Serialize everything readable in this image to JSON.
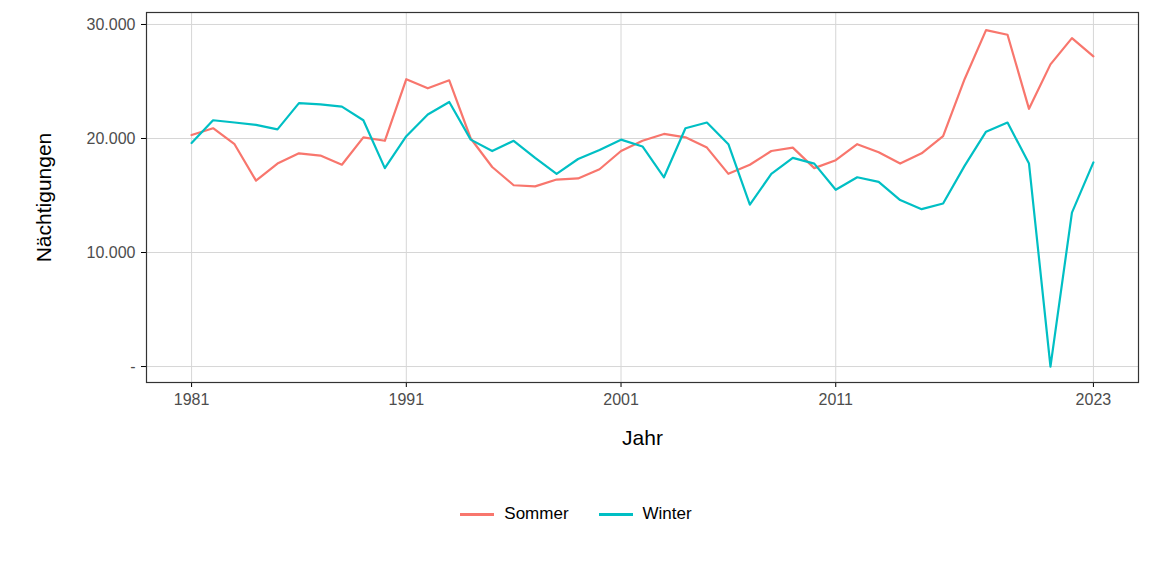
{
  "chart_data": {
    "type": "line",
    "x_label": "Jahr",
    "y_label": "Nächtigungen",
    "x": [
      1981,
      1982,
      1983,
      1984,
      1985,
      1986,
      1987,
      1988,
      1989,
      1990,
      1991,
      1992,
      1993,
      1994,
      1995,
      1996,
      1997,
      1998,
      1999,
      2000,
      2001,
      2002,
      2003,
      2004,
      2005,
      2006,
      2007,
      2008,
      2009,
      2010,
      2011,
      2012,
      2013,
      2014,
      2015,
      2016,
      2017,
      2018,
      2019,
      2020,
      2021,
      2022,
      2023
    ],
    "series": [
      {
        "name": "Sommer",
        "color": "#F8766D",
        "values": [
          20300,
          20900,
          19500,
          16300,
          17800,
          18700,
          18500,
          17700,
          20100,
          19800,
          25200,
          24400,
          25100,
          20000,
          17500,
          15900,
          15800,
          16400,
          16500,
          17300,
          18900,
          19800,
          20400,
          20100,
          19200,
          16900,
          17700,
          18900,
          19200,
          17400,
          18100,
          19500,
          18800,
          17800,
          18700,
          20200,
          25200,
          29500,
          29100,
          22600,
          26500,
          28800,
          27200
        ]
      },
      {
        "name": "Winter",
        "color": "#00BFC4",
        "values": [
          19600,
          21600,
          21400,
          21200,
          20800,
          23100,
          23000,
          22800,
          21600,
          17400,
          20200,
          22100,
          23200,
          19900,
          18900,
          19800,
          18300,
          16900,
          18200,
          19000,
          19900,
          19300,
          16600,
          20900,
          21400,
          19500,
          14200,
          16900,
          18300,
          17800,
          15500,
          16600,
          16200,
          14600,
          13800,
          14300,
          17600,
          20600,
          21400,
          17800,
          0,
          13500,
          17900
        ]
      }
    ],
    "xlim": [
      1978.9,
      2025.1
    ],
    "ylim": [
      -1400,
      31050
    ],
    "xticks": [
      1981,
      1991,
      2001,
      2011,
      2023
    ],
    "yticks": [
      {
        "value": 0,
        "label": "-"
      },
      {
        "value": 10000,
        "label": "10.000"
      },
      {
        "value": 20000,
        "label": "20.000"
      },
      {
        "value": 30000,
        "label": "30.000"
      }
    ],
    "grid": true,
    "legend": "bottom"
  }
}
